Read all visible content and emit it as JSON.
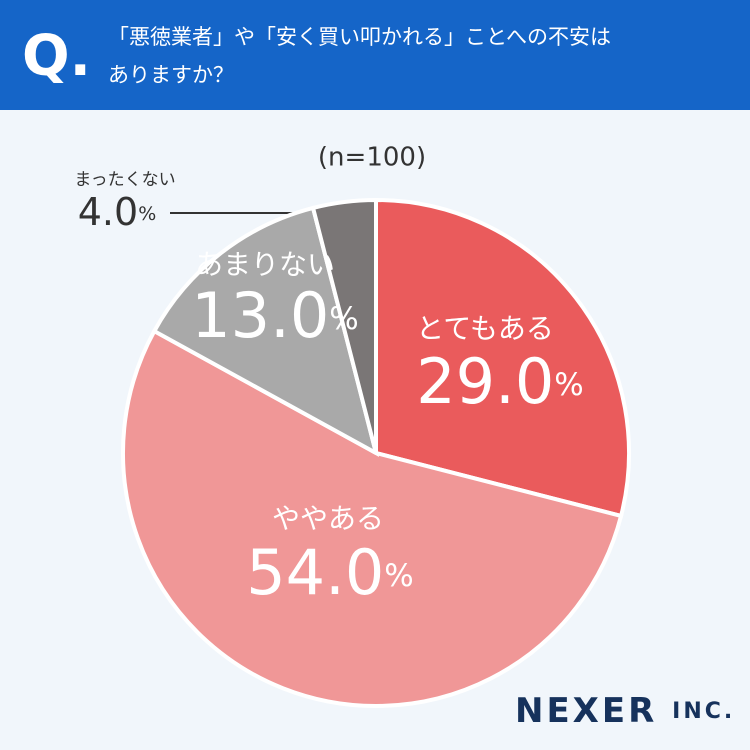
{
  "header": {
    "mark": "Q."
  },
  "chart_data": {
    "type": "pie",
    "title": [
      "「悪徳業者」や「安く買い叩かれる」ことへの不安は",
      "ありますか？"
    ],
    "subtitle": "(n=100)",
    "categories": [
      "とてもある",
      "ややある",
      "あまりない",
      "まったくない"
    ],
    "values": [
      29.0,
      54.0,
      13.0,
      4.0
    ],
    "value_labels": [
      "29.0%",
      "54.0%",
      "13.0%",
      "4.0%"
    ],
    "colors": [
      "#ea5b5c",
      "#f09797",
      "#a9a9a9",
      "#7a7676"
    ]
  },
  "logo": "NEXER INC."
}
